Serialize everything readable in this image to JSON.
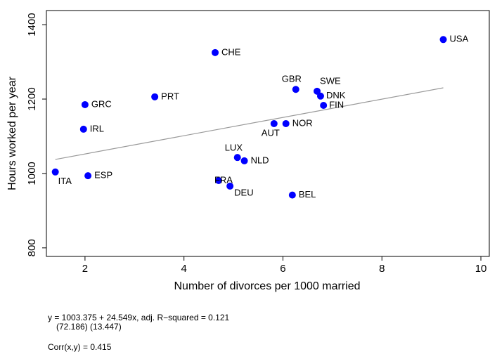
{
  "chart_data": {
    "type": "scatter",
    "x_label": "Number of divorces per 1000 married",
    "y_label": "Hours worked per year",
    "xlim": [
      1.22,
      10.17
    ],
    "ylim": [
      777,
      1438
    ],
    "xticks": [
      2,
      4,
      6,
      8,
      10
    ],
    "yticks": [
      800,
      1000,
      1200,
      1400
    ],
    "point_color": "#0000ff",
    "labels": [
      "USA",
      "CHE",
      "PRT",
      "GRC",
      "IRL",
      "ITA",
      "ESP",
      "GBR",
      "SWE",
      "DNK",
      "FIN",
      "AUT",
      "NOR",
      "LUX",
      "NLD",
      "FRA",
      "DEU",
      "BEL"
    ],
    "x": [
      9.24,
      4.63,
      3.41,
      2.0,
      1.97,
      1.4,
      2.06,
      6.26,
      6.69,
      6.76,
      6.82,
      5.82,
      6.06,
      5.08,
      5.22,
      4.7,
      4.93,
      6.19
    ],
    "y": [
      1360,
      1325,
      1206,
      1185,
      1119,
      1004,
      994,
      1226,
      1221,
      1208,
      1183,
      1134,
      1134,
      1043,
      1034,
      981,
      966,
      942
    ],
    "fit": {
      "x": [
        1.4,
        9.24
      ],
      "y": [
        1037.74,
        1230.21
      ],
      "color": "#999999"
    },
    "notes": [
      "y = 1003.375 + 24.549x,  adj. R−squared = 0.121",
      "(72.186)   (13.447)",
      "Corr(x,y) = 0.415"
    ]
  }
}
